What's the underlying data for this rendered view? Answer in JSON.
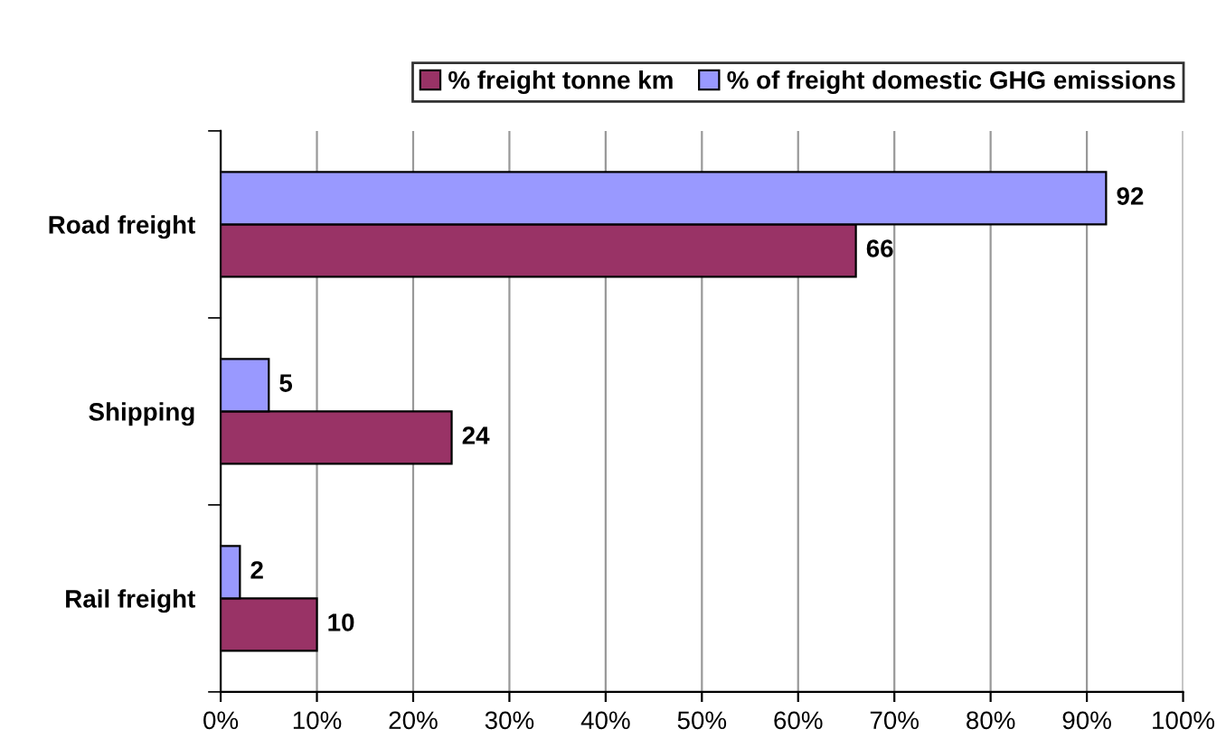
{
  "chart_data": {
    "type": "bar",
    "orientation": "horizontal",
    "categories": [
      "Road freight",
      "Shipping",
      "Rail freight"
    ],
    "series": [
      {
        "name": "% freight tonne km",
        "color": "#993366",
        "values": [
          66,
          24,
          10
        ]
      },
      {
        "name": "% of freight domestic GHG emissions",
        "color": "#9999ff",
        "values": [
          92,
          5,
          2
        ]
      }
    ],
    "xlim": [
      0,
      100
    ],
    "xticks": [
      {
        "value": 0,
        "label": "0%"
      },
      {
        "value": 10,
        "label": "10%"
      },
      {
        "value": 20,
        "label": "20%"
      },
      {
        "value": 30,
        "label": "30%"
      },
      {
        "value": 40,
        "label": "40%"
      },
      {
        "value": 50,
        "label": "50%"
      },
      {
        "value": 60,
        "label": "60%"
      },
      {
        "value": 70,
        "label": "70%"
      },
      {
        "value": 80,
        "label": "80%"
      },
      {
        "value": 90,
        "label": "90%"
      },
      {
        "value": 100,
        "label": "100%"
      }
    ],
    "grid": "x",
    "legend": "top",
    "data_labels": true
  }
}
